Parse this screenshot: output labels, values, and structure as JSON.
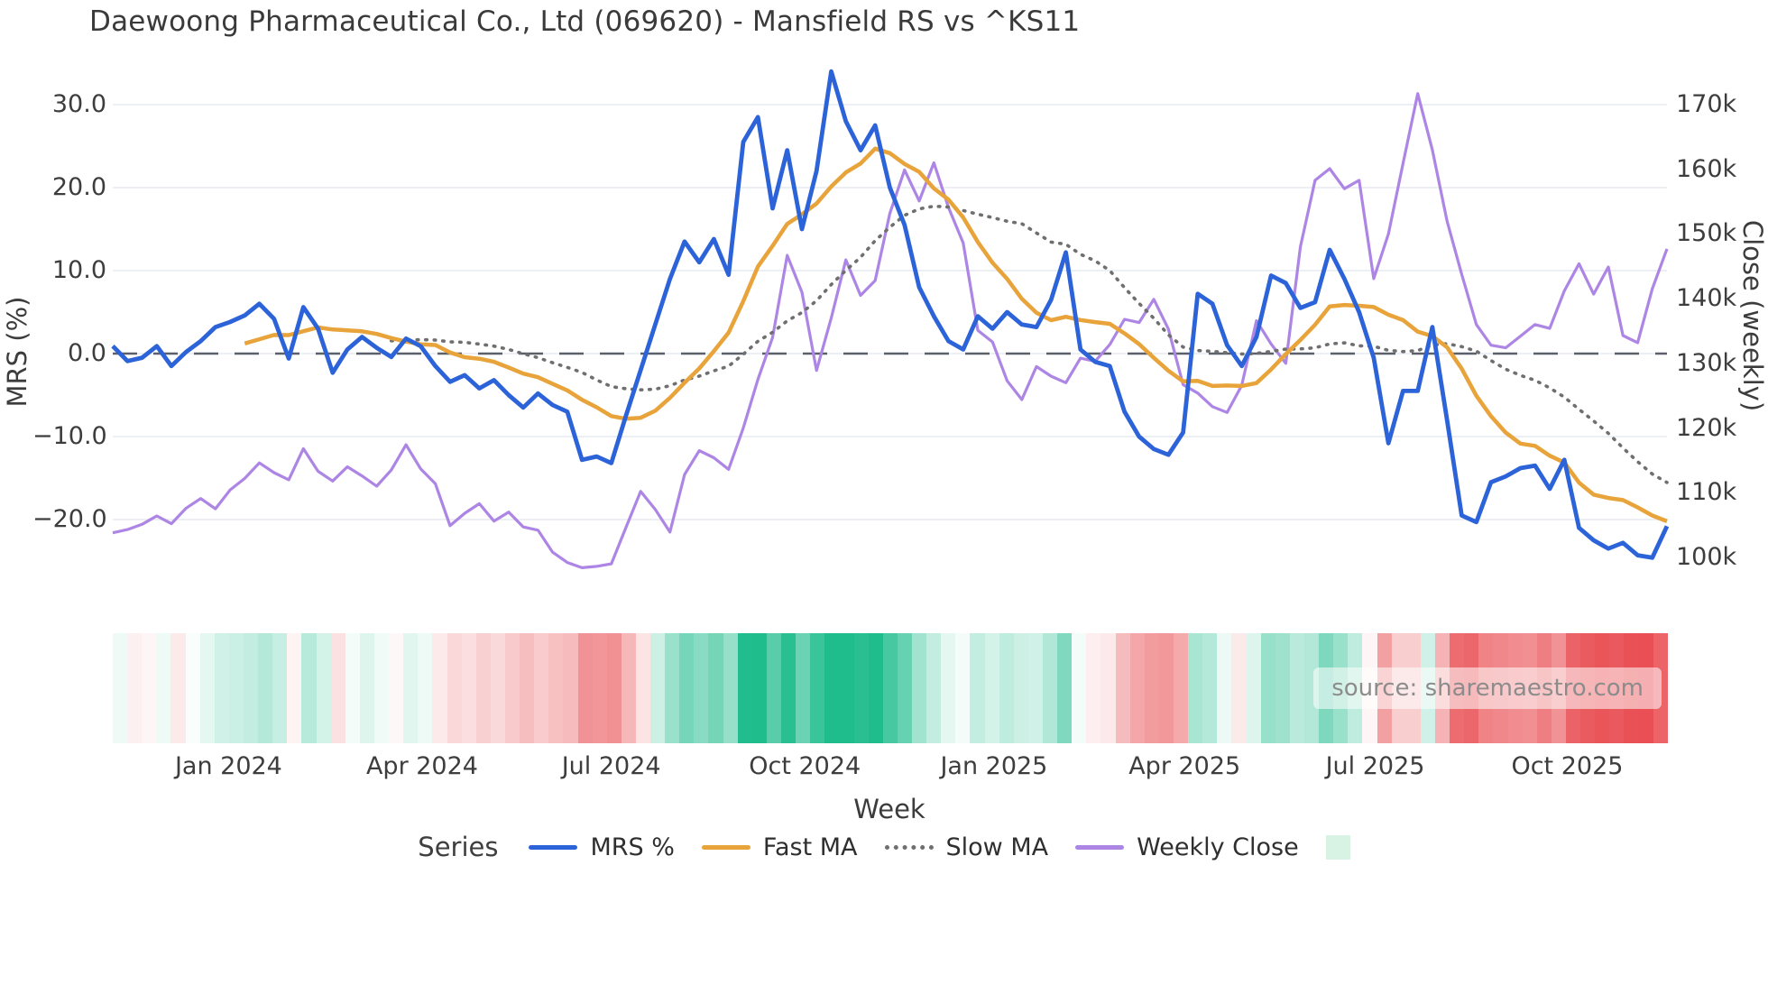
{
  "title": "Daewoong Pharmaceutical Co., Ltd (069620) - Mansfield RS vs ^KS11",
  "source": "source: sharemaestro.com",
  "axes": {
    "left": {
      "label": "MRS (%)",
      "ticks": [
        {
          "value": 30,
          "label": "30.0"
        },
        {
          "value": 20,
          "label": "20.0"
        },
        {
          "value": 10,
          "label": "10.0"
        },
        {
          "value": 0,
          "label": "0.0"
        },
        {
          "value": -10,
          "label": "−10.0"
        },
        {
          "value": -20,
          "label": "−20.0"
        }
      ]
    },
    "right": {
      "label": "Close (weekly)",
      "ticks": [
        {
          "value": 170,
          "label": "170k"
        },
        {
          "value": 160,
          "label": "160k"
        },
        {
          "value": 150,
          "label": "150k"
        },
        {
          "value": 140,
          "label": "140k"
        },
        {
          "value": 130,
          "label": "130k"
        },
        {
          "value": 120,
          "label": "120k"
        },
        {
          "value": 110,
          "label": "110k"
        },
        {
          "value": 100,
          "label": "100k"
        }
      ]
    },
    "x": {
      "label": "Week",
      "ticks": [
        {
          "label": "Jan 2024",
          "index": 7.9
        },
        {
          "label": "Apr 2024",
          "index": 21.1
        },
        {
          "label": "Jul 2024",
          "index": 34.0
        },
        {
          "label": "Oct 2024",
          "index": 47.2
        },
        {
          "label": "Jan 2025",
          "index": 60.1
        },
        {
          "label": "Apr 2025",
          "index": 73.1
        },
        {
          "label": "Jul 2025",
          "index": 86.1
        },
        {
          "label": "Oct 2025",
          "index": 99.2
        }
      ]
    }
  },
  "legend": {
    "title": "Series",
    "items": [
      {
        "label": "MRS %",
        "swatch": "line",
        "color": "#2c63d8"
      },
      {
        "label": "Fast MA",
        "swatch": "line",
        "color": "#e8a43a"
      },
      {
        "label": "Slow MA",
        "swatch": "dotted",
        "color": "#6f6f6f"
      },
      {
        "label": "Weekly Close",
        "swatch": "line",
        "color": "#ad85e4"
      },
      {
        "label": "",
        "swatch": "square",
        "color": "#d8f2e4"
      }
    ]
  },
  "colors": {
    "mrs": "#2c63d8",
    "fast_ma": "#e8a43a",
    "slow_ma": "#6f6f6f",
    "weekly_close": "#ad85e4",
    "grid": "#eceff4",
    "zero_line": "#5b606b",
    "heat_positive": "#1fbc8c",
    "heat_negative": "#e8484d"
  },
  "chart_data": {
    "type": "line",
    "title": "Daewoong Pharmaceutical Co., Ltd (069620) - Mansfield RS vs ^KS11",
    "xlabel": "Week",
    "ylabel_left": "MRS (%)",
    "ylabel_right": "Close (weekly)",
    "x_unit": "weekly index, Nov 2023 through Nov 2025",
    "n_points": 107,
    "ylim_left": [
      -27,
      36
    ],
    "ylim_right_k": [
      98,
      172
    ],
    "grid": true,
    "legend_position": "bottom",
    "series": [
      {
        "name": "MRS %",
        "axis": "left",
        "style": "solid",
        "values": [
          0.9,
          -0.9,
          -0.5,
          0.9,
          -1.5,
          0.2,
          1.5,
          3.2,
          3.8,
          4.6,
          6.0,
          4.2,
          -0.6,
          5.6,
          3.0,
          -2.3,
          0.5,
          2.0,
          0.7,
          -0.4,
          1.8,
          0.9,
          -1.5,
          -3.4,
          -2.6,
          -4.2,
          -3.2,
          -5.0,
          -6.5,
          -4.8,
          -6.2,
          -7.0,
          -12.8,
          -12.4,
          -13.2,
          -7.5,
          -2.0,
          3.5,
          9.0,
          13.5,
          11.0,
          13.8,
          9.5,
          25.5,
          28.5,
          17.5,
          24.5,
          15.0,
          22.0,
          34.0,
          28.0,
          24.5,
          27.5,
          20.0,
          15.5,
          8.0,
          4.5,
          1.5,
          0.5,
          4.5,
          3.0,
          5.0,
          3.5,
          3.2,
          6.5,
          12.2,
          0.5,
          -1.0,
          -1.5,
          -7.0,
          -10.0,
          -11.5,
          -12.2,
          -9.5,
          7.2,
          6.0,
          1.0,
          -1.5,
          2.0,
          9.4,
          8.5,
          5.5,
          6.2,
          12.5,
          9.0,
          5.0,
          -0.5,
          -10.8,
          -4.5,
          -4.5,
          3.2,
          -8.0,
          -19.5,
          -20.3,
          -15.5,
          -14.8,
          -13.8,
          -13.5,
          -16.3,
          -12.8,
          -21.0,
          -22.5,
          -23.5,
          -22.8,
          -24.3,
          -24.6,
          -20.8
        ]
      },
      {
        "name": "Fast MA",
        "axis": "left",
        "style": "solid",
        "derived": {
          "method": "sma",
          "window": 10,
          "of": "MRS %"
        }
      },
      {
        "name": "Slow MA",
        "axis": "left",
        "style": "dotted",
        "derived": {
          "method": "sma",
          "window": 20,
          "of": "MRS %"
        }
      },
      {
        "name": "Weekly Close",
        "axis": "right",
        "unit": "thousands",
        "style": "solid",
        "values": [
          103.8,
          104.3,
          105.1,
          106.4,
          105.2,
          107.6,
          109.1,
          107.5,
          110.4,
          112.2,
          114.6,
          113.1,
          112.0,
          116.8,
          113.3,
          111.8,
          114.0,
          112.6,
          111.0,
          113.5,
          117.4,
          113.7,
          111.4,
          104.9,
          106.8,
          108.3,
          105.6,
          107.0,
          104.7,
          104.2,
          100.8,
          99.2,
          98.4,
          98.6,
          99.0,
          104.6,
          110.2,
          107.4,
          103.9,
          112.8,
          116.5,
          115.4,
          113.6,
          120.0,
          127.5,
          134.0,
          146.7,
          141.0,
          128.9,
          137.0,
          146.0,
          140.5,
          142.8,
          153.2,
          159.9,
          155.1,
          161.0,
          154.1,
          148.6,
          135.1,
          133.3,
          127.3,
          124.4,
          129.5,
          128.0,
          127.0,
          130.8,
          130.3,
          132.9,
          136.8,
          136.3,
          139.9,
          135.3,
          126.7,
          125.4,
          123.3,
          122.4,
          126.6,
          136.6,
          133.0,
          130.0,
          148.0,
          158.3,
          160.1,
          157.0,
          158.3,
          143.1,
          150.0,
          160.9,
          171.7,
          163.0,
          152.0,
          143.8,
          136.0,
          132.8,
          132.4,
          134.2,
          136.0,
          135.4,
          141.2,
          145.4,
          140.7,
          144.9,
          134.3,
          133.2,
          141.5,
          147.7
        ]
      }
    ],
    "heatmap": {
      "basis": "MRS %",
      "positive_color": "#1fbc8c",
      "negative_color": "#e8484d",
      "max_abs": 26
    }
  }
}
